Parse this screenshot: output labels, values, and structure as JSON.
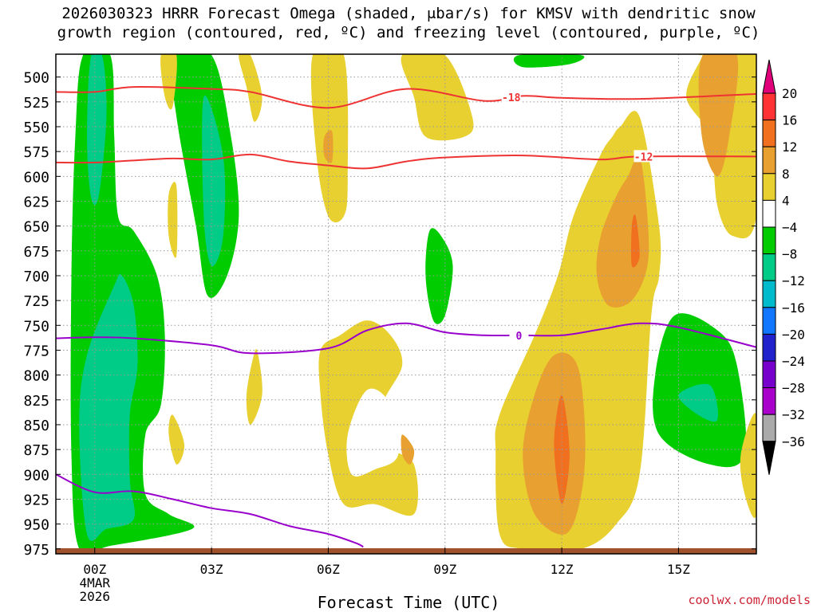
{
  "chart_data": {
    "type": "heatmap",
    "title_line1": "2026030323 HRRR Forecast Omega (shaded, μbar/s) for KMSV with dendritic snow",
    "title_line2": "growth region (contoured, red, ºC) and freezing level (contoured, purple, ºC)",
    "xlabel": "Forecast Time (UTC)",
    "watermark": "coolwx.com/models",
    "x_ticks": [
      {
        "hour": 0,
        "label": "00Z"
      },
      {
        "hour": 3,
        "label": "03Z"
      },
      {
        "hour": 6,
        "label": "06Z"
      },
      {
        "hour": 9,
        "label": "09Z"
      },
      {
        "hour": 12,
        "label": "12Z"
      },
      {
        "hour": 15,
        "label": "15Z"
      }
    ],
    "date_label_line1": "4MAR",
    "date_label_line2": "2026",
    "xlim_hours": [
      -1,
      17
    ],
    "y_ticks": [
      500,
      525,
      550,
      575,
      600,
      625,
      650,
      675,
      700,
      725,
      750,
      775,
      800,
      825,
      850,
      875,
      900,
      925,
      950,
      975
    ],
    "ylim_hpa": [
      477,
      980
    ],
    "colorbar": {
      "levels": [
        "20",
        "16",
        "12",
        "8",
        "4",
        "−4",
        "−8",
        "−12",
        "−16",
        "−20",
        "−24",
        "−28",
        "−32",
        "−36"
      ],
      "colors": [
        "#e0007a",
        "#ff3333",
        "#f07020",
        "#e8a030",
        "#e8d030",
        "#ffffff",
        "#00cc00",
        "#00cc88",
        "#00bbcc",
        "#1177ff",
        "#2222cc",
        "#7700cc",
        "#aa00cc",
        "#aaaaaa",
        "#000000"
      ]
    },
    "contours": [
      {
        "name": "-18C isotherm",
        "color": "#ee3333",
        "label": "-18",
        "label_hour": 10.7,
        "points": [
          [
            -1,
            515
          ],
          [
            0,
            515
          ],
          [
            1,
            510
          ],
          [
            3,
            512
          ],
          [
            4,
            515
          ],
          [
            6,
            531
          ],
          [
            8,
            512
          ],
          [
            10,
            524
          ],
          [
            11,
            519
          ],
          [
            12,
            521
          ],
          [
            14,
            522
          ],
          [
            17,
            517
          ]
        ]
      },
      {
        "name": "-12C isotherm",
        "color": "#ee3333",
        "label": "-12",
        "label_hour": 14.1,
        "points": [
          [
            -1,
            586
          ],
          [
            0,
            586
          ],
          [
            1,
            584
          ],
          [
            2,
            582
          ],
          [
            3,
            583
          ],
          [
            4,
            578
          ],
          [
            5,
            585
          ],
          [
            6,
            589
          ],
          [
            7,
            592
          ],
          [
            8,
            585
          ],
          [
            9,
            581
          ],
          [
            11,
            579
          ],
          [
            13,
            583
          ],
          [
            14,
            580
          ],
          [
            17,
            580
          ]
        ]
      },
      {
        "name": "0C freezing level",
        "color": "#9900cc",
        "label": "0",
        "label_hour": 10.9,
        "points": [
          [
            -1,
            763
          ],
          [
            0,
            762
          ],
          [
            1,
            763
          ],
          [
            3,
            770
          ],
          [
            4,
            778
          ],
          [
            6,
            773
          ],
          [
            7,
            755
          ],
          [
            8,
            748
          ],
          [
            9,
            757
          ],
          [
            10,
            760
          ],
          [
            11,
            760
          ],
          [
            12,
            760
          ],
          [
            13,
            754
          ],
          [
            14,
            748
          ],
          [
            15,
            752
          ],
          [
            17,
            772
          ]
        ]
      },
      {
        "name": "0C freezing level (lower branch)",
        "color": "#9900cc",
        "label": "",
        "points": [
          [
            -1,
            900
          ],
          [
            0,
            918
          ],
          [
            1,
            917
          ],
          [
            2,
            925
          ],
          [
            3,
            934
          ],
          [
            4,
            940
          ],
          [
            5,
            952
          ],
          [
            6,
            960
          ],
          [
            6.7,
            969
          ],
          [
            6.9,
            973
          ]
        ]
      }
    ],
    "shaded_regions": [
      {
        "color": "#00cc00",
        "points": [
          [
            -0.4,
            975
          ],
          [
            -0.6,
            880
          ],
          [
            -0.6,
            700
          ],
          [
            -0.5,
            560
          ],
          [
            -0.3,
            478
          ],
          [
            0.4,
            478
          ],
          [
            0.5,
            560
          ],
          [
            0.6,
            640
          ],
          [
            1.0,
            655
          ],
          [
            1.6,
            700
          ],
          [
            1.8,
            760
          ],
          [
            1.7,
            830
          ],
          [
            1.3,
            860
          ],
          [
            1.3,
            920
          ],
          [
            1.9,
            940
          ],
          [
            2.5,
            955
          ],
          [
            0.4,
            972
          ]
        ]
      },
      {
        "color": "#00cc88",
        "points": [
          [
            -0.2,
            960
          ],
          [
            -0.4,
            850
          ],
          [
            -0.2,
            780
          ],
          [
            0.5,
            710
          ],
          [
            0.7,
            700
          ],
          [
            1.0,
            730
          ],
          [
            1.1,
            790
          ],
          [
            0.9,
            840
          ],
          [
            0.9,
            905
          ],
          [
            1.0,
            945
          ],
          [
            0.3,
            955
          ]
        ]
      },
      {
        "color": "#00cc88",
        "points": [
          [
            -0.1,
            620
          ],
          [
            -0.2,
            560
          ],
          [
            -0.1,
            480
          ],
          [
            0.2,
            480
          ],
          [
            0.3,
            540
          ],
          [
            0.1,
            620
          ]
        ]
      },
      {
        "color": "#00cc00",
        "points": [
          [
            2.0,
            478
          ],
          [
            3.0,
            478
          ],
          [
            3.5,
            560
          ],
          [
            3.7,
            640
          ],
          [
            3.4,
            700
          ],
          [
            2.9,
            720
          ],
          [
            2.6,
            650
          ],
          [
            2.1,
            540
          ]
        ]
      },
      {
        "color": "#00cc88",
        "points": [
          [
            2.8,
            520
          ],
          [
            3.3,
            580
          ],
          [
            3.3,
            660
          ],
          [
            3.0,
            690
          ],
          [
            2.8,
            640
          ]
        ]
      },
      {
        "color": "#00cc00",
        "points": [
          [
            8.6,
            655
          ],
          [
            8.9,
            660
          ],
          [
            9.2,
            690
          ],
          [
            9.0,
            740
          ],
          [
            8.7,
            745
          ],
          [
            8.5,
            700
          ]
        ]
      },
      {
        "color": "#00cc00",
        "points": [
          [
            10.9,
            478
          ],
          [
            12.5,
            478
          ],
          [
            12.2,
            487
          ],
          [
            11.0,
            490
          ]
        ]
      },
      {
        "color": "#00cc00",
        "points": [
          [
            14.9,
            740
          ],
          [
            16.0,
            755
          ],
          [
            16.5,
            790
          ],
          [
            16.7,
            880
          ],
          [
            15.8,
            890
          ],
          [
            14.5,
            860
          ],
          [
            14.4,
            800
          ]
        ]
      },
      {
        "color": "#00cc88",
        "points": [
          [
            15.0,
            820
          ],
          [
            15.8,
            810
          ],
          [
            16.0,
            845
          ],
          [
            15.5,
            840
          ]
        ]
      },
      {
        "color": "#e8d030",
        "points": [
          [
            1.7,
            478
          ],
          [
            2.1,
            478
          ],
          [
            2.0,
            530
          ],
          [
            1.8,
            520
          ]
        ]
      },
      {
        "color": "#e8d030",
        "points": [
          [
            3.7,
            478
          ],
          [
            4.0,
            478
          ],
          [
            4.3,
            520
          ],
          [
            4.1,
            545
          ],
          [
            3.9,
            510
          ]
        ]
      },
      {
        "color": "#e8d030",
        "points": [
          [
            5.6,
            478
          ],
          [
            6.4,
            478
          ],
          [
            6.5,
            600
          ],
          [
            6.4,
            640
          ],
          [
            6.0,
            640
          ],
          [
            5.7,
            580
          ]
        ]
      },
      {
        "color": "#e8a030",
        "points": [
          [
            5.9,
            560
          ],
          [
            6.1,
            555
          ],
          [
            6.1,
            585
          ],
          [
            5.9,
            580
          ]
        ]
      },
      {
        "color": "#e8d030",
        "points": [
          [
            7.9,
            478
          ],
          [
            9.0,
            478
          ],
          [
            9.7,
            540
          ],
          [
            9.5,
            560
          ],
          [
            8.5,
            560
          ],
          [
            8.2,
            520
          ]
        ]
      },
      {
        "color": "#e8d030",
        "points": [
          [
            1.9,
            618
          ],
          [
            2.1,
            610
          ],
          [
            2.1,
            680
          ],
          [
            1.9,
            660
          ]
        ]
      },
      {
        "color": "#e8d030",
        "points": [
          [
            5.8,
            775
          ],
          [
            6.3,
            760
          ],
          [
            7.0,
            745
          ],
          [
            7.6,
            760
          ],
          [
            7.9,
            790
          ],
          [
            7.4,
            830
          ],
          [
            7.5,
            870
          ],
          [
            8.2,
            890
          ],
          [
            8.2,
            940
          ],
          [
            7.2,
            930
          ],
          [
            6.4,
            930
          ],
          [
            6.0,
            880
          ],
          [
            5.8,
            820
          ]
        ]
      },
      {
        "color": "#ffffff",
        "points": [
          [
            6.5,
            860
          ],
          [
            7.0,
            815
          ],
          [
            7.6,
            830
          ],
          [
            7.8,
            880
          ],
          [
            7.2,
            895
          ],
          [
            6.6,
            900
          ]
        ]
      },
      {
        "color": "#e8d030",
        "points": [
          [
            4.1,
            778
          ],
          [
            4.2,
            780
          ],
          [
            4.3,
            820
          ],
          [
            4.0,
            850
          ],
          [
            3.9,
            820
          ]
        ]
      },
      {
        "color": "#e8d030",
        "points": [
          [
            2.0,
            840
          ],
          [
            2.3,
            870
          ],
          [
            2.1,
            890
          ],
          [
            1.9,
            860
          ]
        ]
      },
      {
        "color": "#e8d030",
        "points": [
          [
            12.5,
            975
          ],
          [
            11.0,
            975
          ],
          [
            10.4,
            960
          ],
          [
            10.3,
            880
          ],
          [
            10.4,
            840
          ],
          [
            11.3,
            760
          ],
          [
            11.9,
            700
          ],
          [
            12.3,
            640
          ],
          [
            13.0,
            578
          ],
          [
            13.3,
            560
          ],
          [
            13.5,
            550
          ],
          [
            14.0,
            540
          ],
          [
            14.5,
            650
          ],
          [
            14.5,
            700
          ],
          [
            14.3,
            740
          ],
          [
            14.0,
            900
          ],
          [
            13.4,
            950
          ]
        ]
      },
      {
        "color": "#e8d030",
        "points": [
          [
            15.6,
            478
          ],
          [
            17.0,
            478
          ],
          [
            17.0,
            640
          ],
          [
            16.4,
            660
          ],
          [
            16.0,
            630
          ],
          [
            15.8,
            560
          ],
          [
            15.2,
            520
          ],
          [
            15.6,
            480
          ]
        ]
      },
      {
        "color": "#e8d030",
        "points": [
          [
            16.6,
            880
          ],
          [
            17.0,
            840
          ],
          [
            17.0,
            940
          ],
          [
            16.7,
            920
          ]
        ]
      },
      {
        "color": "#e8a030",
        "points": [
          [
            12.1,
            960
          ],
          [
            11.3,
            940
          ],
          [
            11.0,
            880
          ],
          [
            11.3,
            820
          ],
          [
            11.8,
            780
          ],
          [
            12.4,
            790
          ],
          [
            12.6,
            860
          ],
          [
            12.5,
            920
          ]
        ]
      },
      {
        "color": "#f07020",
        "points": [
          [
            12.0,
            930
          ],
          [
            11.8,
            870
          ],
          [
            12.0,
            820
          ],
          [
            12.2,
            880
          ]
        ]
      },
      {
        "color": "#e8a030",
        "points": [
          [
            12.9,
            700
          ],
          [
            13.0,
            660
          ],
          [
            13.4,
            620
          ],
          [
            13.7,
            600
          ],
          [
            14.0,
            580
          ],
          [
            14.2,
            640
          ],
          [
            14.2,
            690
          ],
          [
            13.8,
            725
          ],
          [
            13.2,
            730
          ]
        ]
      },
      {
        "color": "#f07020",
        "points": [
          [
            13.8,
            690
          ],
          [
            13.8,
            650
          ],
          [
            13.9,
            640
          ],
          [
            14.0,
            680
          ]
        ]
      },
      {
        "color": "#e8a030",
        "points": [
          [
            16.5,
            478
          ],
          [
            16.3,
            560
          ],
          [
            16.0,
            600
          ],
          [
            15.6,
            560
          ],
          [
            15.6,
            480
          ]
        ]
      },
      {
        "color": "#e8a030",
        "points": [
          [
            7.9,
            860
          ],
          [
            8.2,
            875
          ],
          [
            8.1,
            890
          ],
          [
            7.9,
            880
          ]
        ]
      }
    ]
  }
}
